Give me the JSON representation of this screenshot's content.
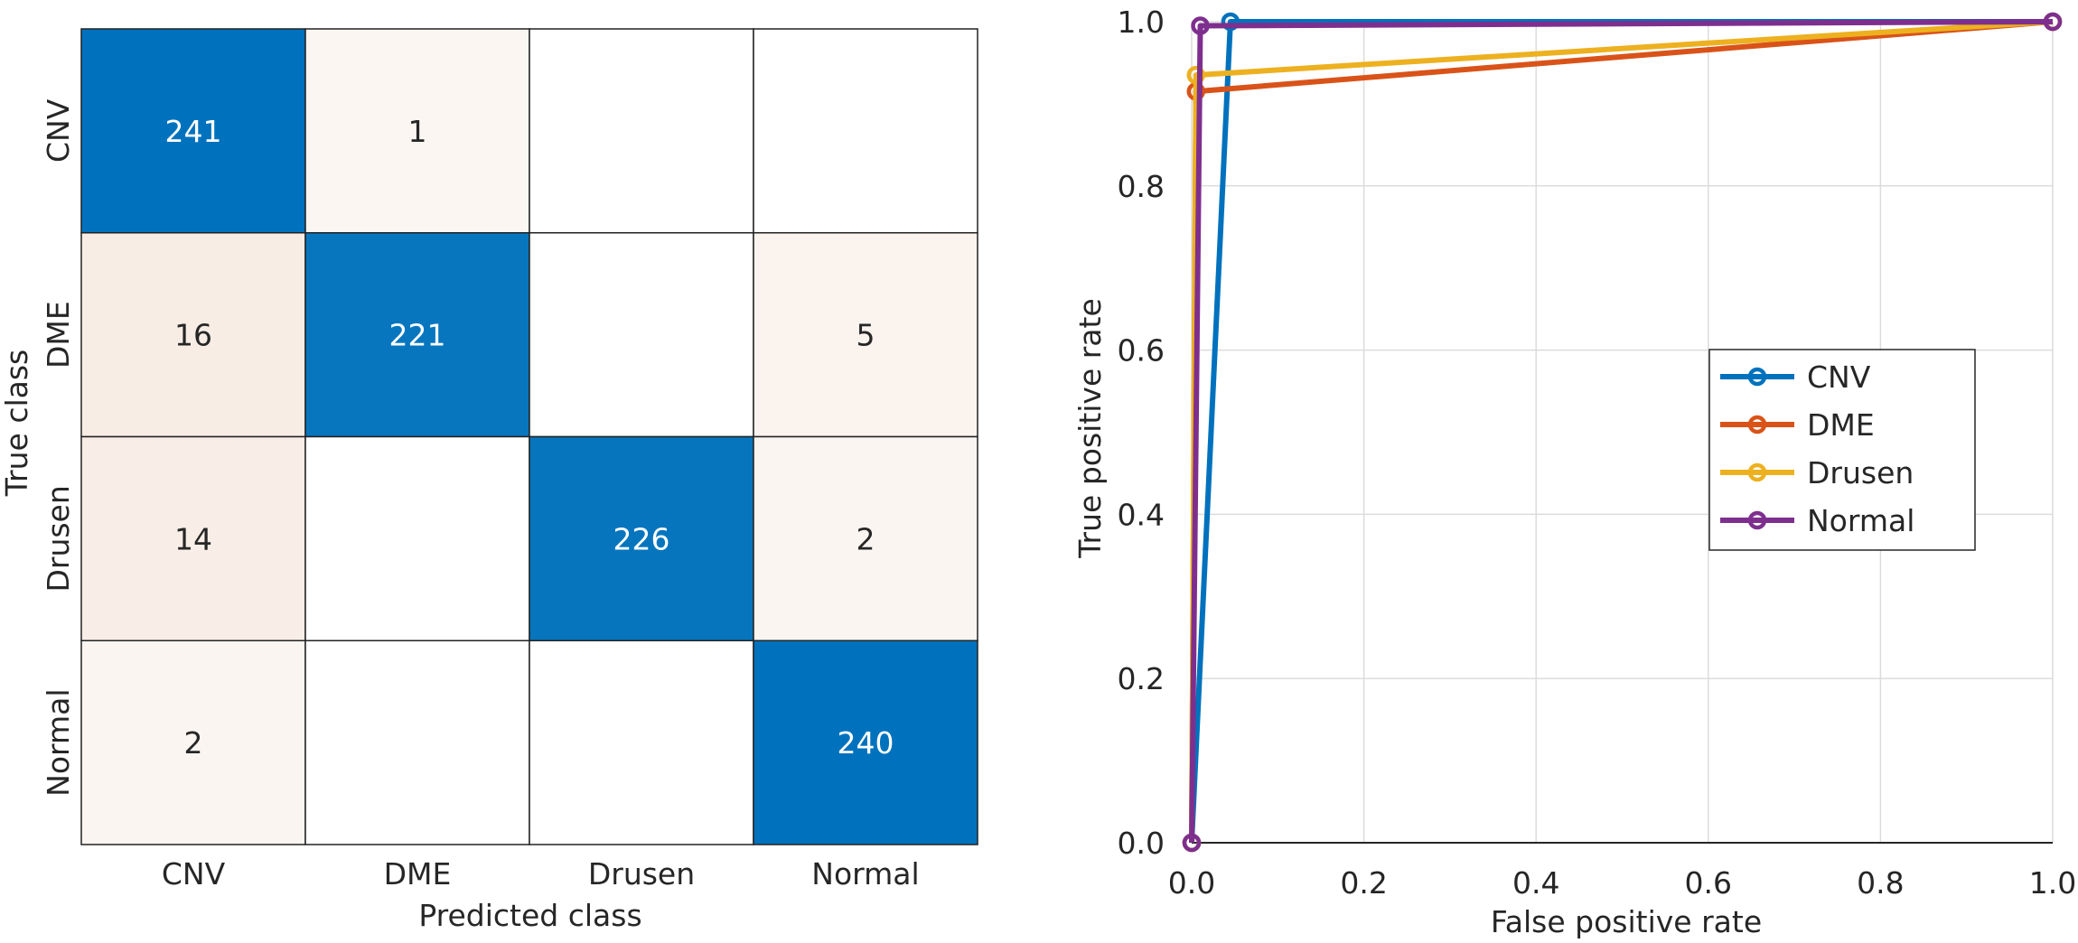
{
  "chart_data": [
    {
      "type": "heatmap",
      "xlabel": "Predicted class",
      "ylabel": "True class",
      "x_categories": [
        "CNV",
        "DME",
        "Drusen",
        "Normal"
      ],
      "y_categories": [
        "CNV",
        "DME",
        "Drusen",
        "Normal"
      ],
      "values": [
        [
          241,
          1,
          null,
          null
        ],
        [
          16,
          221,
          null,
          5
        ],
        [
          14,
          null,
          226,
          2
        ],
        [
          2,
          null,
          null,
          240
        ]
      ],
      "colors": {
        "high": "#0072bd",
        "low_tint": "#f8ece4",
        "empty": "#ffffff"
      }
    },
    {
      "type": "line",
      "xlabel": "False positive rate",
      "ylabel": "True positive rate",
      "xlim": [
        0,
        1
      ],
      "ylim": [
        0,
        1
      ],
      "xticks": [
        "0.0",
        "0.2",
        "0.4",
        "0.6",
        "0.8",
        "1.0"
      ],
      "yticks": [
        "0.0",
        "0.2",
        "0.4",
        "0.6",
        "0.8",
        "1.0"
      ],
      "grid": true,
      "legend_position": "center-right",
      "series": [
        {
          "name": "CNV",
          "color": "#0072bd",
          "x": [
            0,
            0.045,
            1
          ],
          "y": [
            0,
            1.0,
            1
          ]
        },
        {
          "name": "DME",
          "color": "#d95319",
          "x": [
            0,
            0.005,
            1
          ],
          "y": [
            0,
            0.915,
            1
          ]
        },
        {
          "name": "Drusen",
          "color": "#edb120",
          "x": [
            0,
            0.005,
            1
          ],
          "y": [
            0,
            0.935,
            1
          ]
        },
        {
          "name": "Normal",
          "color": "#7e2f8e",
          "x": [
            0,
            0.01,
            1
          ],
          "y": [
            0,
            0.995,
            1
          ]
        }
      ]
    }
  ]
}
